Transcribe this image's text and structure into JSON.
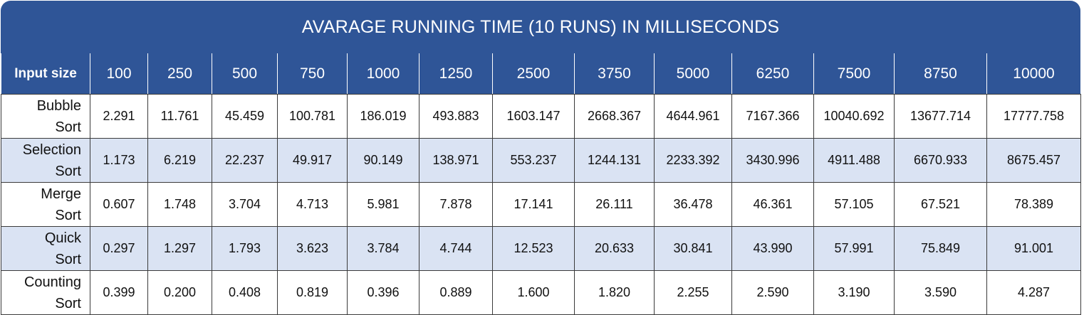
{
  "chart_data": {
    "type": "table",
    "title": "AVARAGE RUNNING TIME (10 RUNS) IN MILLISECONDS",
    "corner_label": "Input size",
    "columns": [
      "100",
      "250",
      "500",
      "750",
      "1000",
      "1250",
      "2500",
      "3750",
      "5000",
      "6250",
      "7500",
      "8750",
      "10000"
    ],
    "rows": [
      {
        "label_lines": [
          "Bubble",
          "Sort"
        ],
        "values": [
          "2.291",
          "11.761",
          "45.459",
          "100.781",
          "186.019",
          "493.883",
          "1603.147",
          "2668.367",
          "4644.961",
          "7167.366",
          "10040.692",
          "13677.714",
          "17777.758"
        ]
      },
      {
        "label_lines": [
          "Selection",
          "Sort"
        ],
        "values": [
          "1.173",
          "6.219",
          "22.237",
          "49.917",
          "90.149",
          "138.971",
          "553.237",
          "1244.131",
          "2233.392",
          "3430.996",
          "4911.488",
          "6670.933",
          "8675.457"
        ]
      },
      {
        "label_lines": [
          "Merge",
          "Sort"
        ],
        "values": [
          "0.607",
          "1.748",
          "3.704",
          "4.713",
          "5.981",
          "7.878",
          "17.141",
          "26.111",
          "36.478",
          "46.361",
          "57.105",
          "67.521",
          "78.389"
        ]
      },
      {
        "label_lines": [
          "Quick",
          "Sort"
        ],
        "values": [
          "0.297",
          "1.297",
          "1.793",
          "3.623",
          "3.784",
          "4.744",
          "12.523",
          "20.633",
          "30.841",
          "43.990",
          "57.991",
          "75.849",
          "91.001"
        ]
      },
      {
        "label_lines": [
          "Counting",
          "Sort"
        ],
        "values": [
          "0.399",
          "0.200",
          "0.408",
          "0.819",
          "0.396",
          "0.889",
          "1.600",
          "1.820",
          "2.255",
          "2.590",
          "3.190",
          "3.590",
          "4.287"
        ]
      }
    ]
  },
  "colors": {
    "header_bg": "#2f5597",
    "header_text": "#ffffff",
    "band_bg": "#dae3f3",
    "grid_line": "#3b3b3b"
  }
}
